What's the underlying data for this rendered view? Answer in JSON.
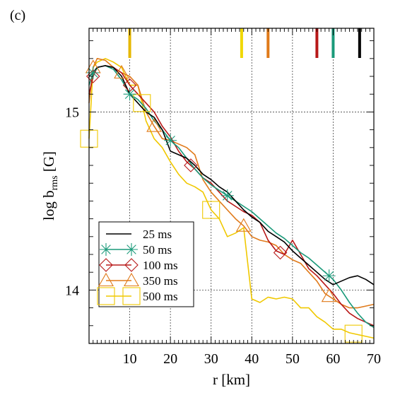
{
  "panel_label": "(c)",
  "chart_data": {
    "type": "line",
    "xlabel": "r [km]",
    "ylabel": "log b",
    "ylabel_sub": "rms",
    "ylabel_unit": " [G]",
    "xlim": [
      0,
      70
    ],
    "ylim": [
      13.7,
      15.47
    ],
    "x_ticks": [
      10,
      20,
      30,
      40,
      50,
      60,
      70
    ],
    "y_ticks": [
      14,
      15
    ],
    "grid": true,
    "legend_position": "bottom-left",
    "series": [
      {
        "name": "25 ms",
        "color": "#000000",
        "marker": "none",
        "x": [
          0,
          1,
          2,
          4,
          6,
          8,
          10,
          12,
          14,
          16,
          18,
          20,
          22,
          24,
          26,
          28,
          30,
          32,
          34,
          36,
          38,
          40,
          42,
          44,
          46,
          48,
          50,
          52,
          54,
          56,
          58,
          60,
          62,
          64,
          66,
          68,
          70
        ],
        "y": [
          15.2,
          15.22,
          15.25,
          15.26,
          15.25,
          15.2,
          15.1,
          15.05,
          15.0,
          14.97,
          14.9,
          14.78,
          14.76,
          14.74,
          14.7,
          14.65,
          14.62,
          14.58,
          14.55,
          14.5,
          14.45,
          14.41,
          14.38,
          14.33,
          14.3,
          14.27,
          14.22,
          14.18,
          14.14,
          14.1,
          14.06,
          14.03,
          14.05,
          14.07,
          14.08,
          14.06,
          14.03
        ],
        "marker_x": []
      },
      {
        "name": "50 ms",
        "color": "#1a9a7a",
        "marker": "asterisk",
        "x": [
          0,
          1,
          2,
          4,
          6,
          8,
          10,
          12,
          14,
          16,
          18,
          20,
          22,
          24,
          26,
          28,
          30,
          32,
          34,
          36,
          38,
          40,
          42,
          44,
          46,
          48,
          50,
          52,
          54,
          56,
          58,
          60,
          62,
          64,
          66,
          68,
          70
        ],
        "y": [
          15.15,
          15.22,
          15.25,
          15.26,
          15.24,
          15.18,
          15.1,
          15.07,
          15.02,
          14.95,
          14.9,
          14.84,
          14.8,
          14.74,
          14.68,
          14.63,
          14.59,
          14.56,
          14.53,
          14.5,
          14.47,
          14.44,
          14.4,
          14.36,
          14.32,
          14.29,
          14.25,
          14.21,
          14.18,
          14.14,
          14.1,
          14.06,
          14.0,
          13.93,
          13.87,
          13.82,
          13.79
        ],
        "marker_x": [
          1,
          10,
          20,
          34,
          59
        ]
      },
      {
        "name": "100 ms",
        "color": "#b81818",
        "marker": "diamond",
        "x": [
          0,
          1,
          2,
          4,
          6,
          8,
          10,
          12,
          14,
          16,
          18,
          20,
          22,
          24,
          26,
          28,
          30,
          32,
          34,
          36,
          38,
          40,
          42,
          44,
          46,
          48,
          50,
          52,
          54,
          56,
          58,
          60,
          62,
          64,
          66,
          68,
          70
        ],
        "y": [
          15.1,
          15.2,
          15.25,
          15.26,
          15.25,
          15.22,
          15.15,
          15.1,
          15.05,
          15.0,
          14.92,
          14.86,
          14.78,
          14.72,
          14.68,
          14.63,
          14.6,
          14.55,
          14.5,
          14.47,
          14.44,
          14.42,
          14.38,
          14.28,
          14.22,
          14.2,
          14.28,
          14.2,
          14.12,
          14.08,
          14.03,
          13.98,
          13.92,
          13.87,
          13.84,
          13.82,
          13.8
        ],
        "marker_x": [
          1,
          10,
          25,
          47
        ]
      },
      {
        "name": "350 ms",
        "color": "#e07a1a",
        "marker": "triangle",
        "x": [
          0,
          1,
          2,
          4,
          6,
          8,
          10,
          12,
          14,
          16,
          18,
          20,
          22,
          24,
          26,
          28,
          30,
          32,
          34,
          36,
          38,
          40,
          42,
          44,
          46,
          48,
          50,
          52,
          54,
          56,
          58,
          60,
          62,
          64,
          66,
          68,
          70
        ],
        "y": [
          15.05,
          15.25,
          15.3,
          15.29,
          15.25,
          15.22,
          15.2,
          15.15,
          15.0,
          14.92,
          14.85,
          14.84,
          14.82,
          14.8,
          14.76,
          14.62,
          14.55,
          14.5,
          14.45,
          14.4,
          14.36,
          14.3,
          14.28,
          14.27,
          14.25,
          14.2,
          14.17,
          14.15,
          14.1,
          14.05,
          13.98,
          13.95,
          13.92,
          13.9,
          13.9,
          13.91,
          13.92
        ],
        "marker_x": [
          1,
          8,
          16,
          38,
          59
        ]
      },
      {
        "name": "500 ms",
        "color": "#f0c800",
        "marker": "square",
        "x": [
          0,
          1,
          2,
          4,
          6,
          8,
          10,
          12,
          14,
          16,
          18,
          20,
          22,
          24,
          26,
          28,
          30,
          32,
          34,
          36,
          38,
          40,
          42,
          44,
          46,
          48,
          50,
          52,
          54,
          56,
          58,
          60,
          62,
          64,
          66,
          68,
          70
        ],
        "y": [
          14.85,
          15.25,
          15.28,
          15.3,
          15.28,
          15.25,
          15.15,
          15.15,
          14.95,
          14.85,
          14.8,
          14.72,
          14.65,
          14.6,
          14.58,
          14.55,
          14.45,
          14.4,
          14.3,
          14.32,
          14.35,
          13.95,
          13.93,
          13.96,
          13.95,
          13.96,
          13.95,
          13.9,
          13.9,
          13.85,
          13.82,
          13.78,
          13.78,
          13.76,
          13.75,
          13.74,
          13.73
        ],
        "marker_x": [
          0,
          13,
          30,
          65
        ]
      }
    ],
    "top_markers": [
      {
        "x": 10,
        "color": "#e6b800"
      },
      {
        "x": 37.5,
        "color": "#f0d800"
      },
      {
        "x": 44,
        "color": "#e07a1a"
      },
      {
        "x": 56,
        "color": "#b81818"
      },
      {
        "x": 60,
        "color": "#1a9a7a"
      },
      {
        "x": 66.5,
        "color": "#000000"
      }
    ]
  }
}
